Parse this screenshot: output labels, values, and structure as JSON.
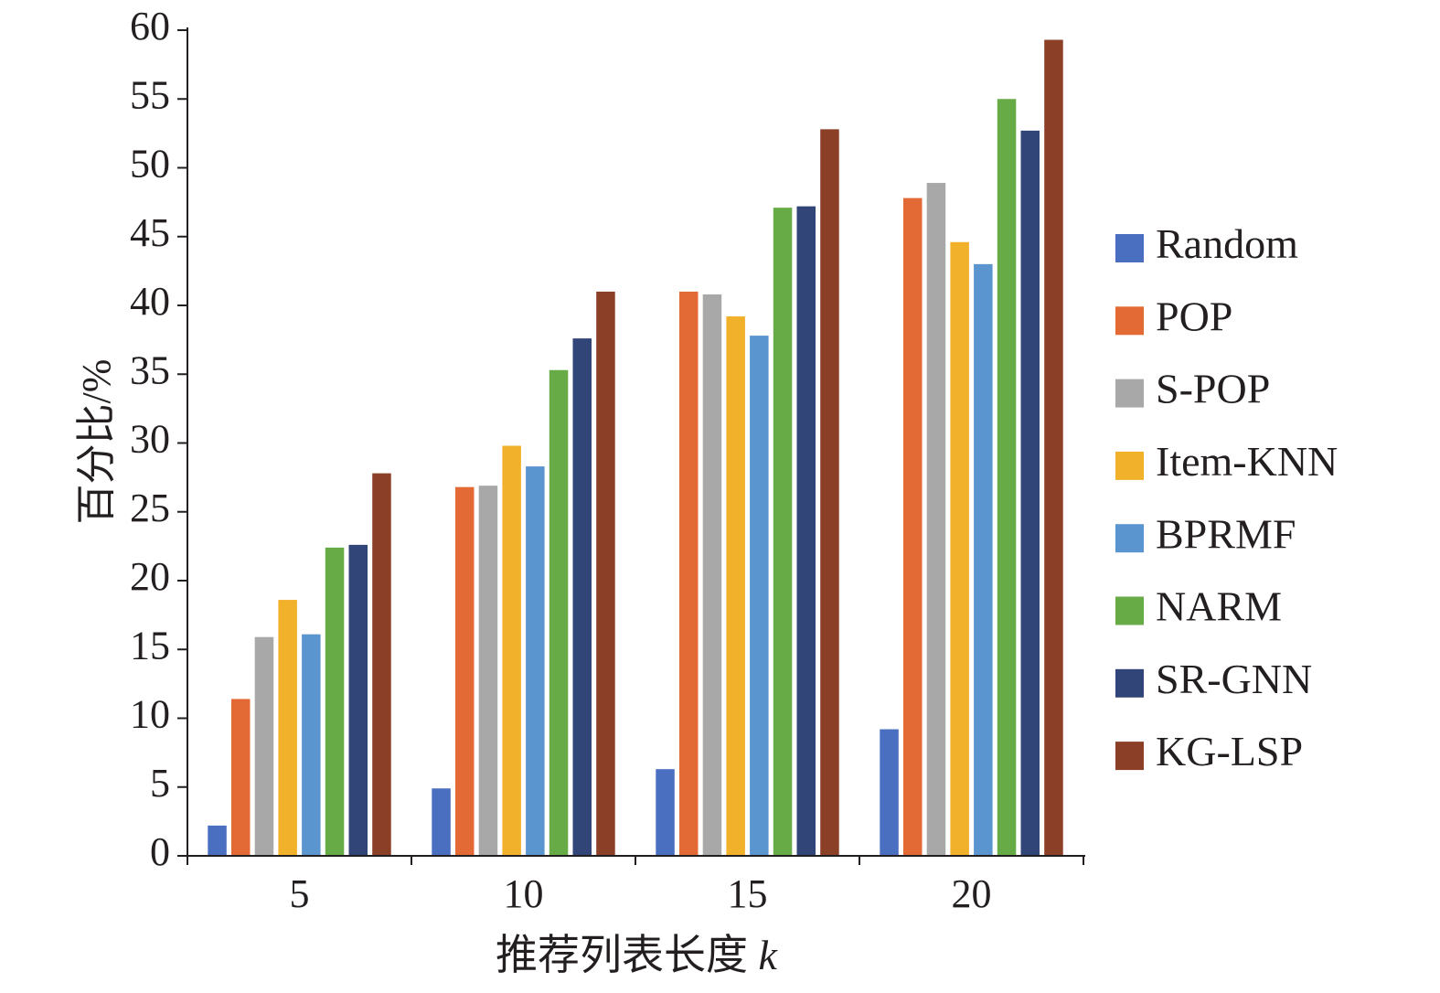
{
  "chart_data": {
    "type": "bar",
    "title": "",
    "xlabel_text": "推荐列表长度",
    "xlabel_var": "k",
    "ylabel": "百分比/%",
    "categories": [
      "5",
      "10",
      "15",
      "20"
    ],
    "ylim": [
      0,
      60
    ],
    "yticks": [
      0,
      5,
      10,
      15,
      20,
      25,
      30,
      35,
      40,
      45,
      50,
      55,
      60
    ],
    "grid": false,
    "legend_position": "right",
    "series": [
      {
        "name": "Random",
        "color": "#4a6fc0",
        "values": [
          2.2,
          4.9,
          6.3,
          9.2
        ]
      },
      {
        "name": "POP",
        "color": "#e46a35",
        "values": [
          11.4,
          26.8,
          41.0,
          47.8
        ]
      },
      {
        "name": "S-POP",
        "color": "#a8a8a8",
        "values": [
          15.9,
          26.9,
          40.8,
          48.9
        ]
      },
      {
        "name": "Item-KNN",
        "color": "#f2b12a",
        "values": [
          18.6,
          29.8,
          39.2,
          44.6
        ]
      },
      {
        "name": "BPRMF",
        "color": "#5b95cf",
        "values": [
          16.1,
          28.3,
          37.8,
          43.0
        ]
      },
      {
        "name": "NARM",
        "color": "#67ab47",
        "values": [
          22.4,
          35.3,
          47.1,
          55.0
        ]
      },
      {
        "name": "SR-GNN",
        "color": "#324578",
        "values": [
          22.6,
          37.6,
          47.2,
          52.7
        ]
      },
      {
        "name": "KG-LSP",
        "color": "#8a3f26",
        "values": [
          27.8,
          41.0,
          52.8,
          59.3
        ]
      }
    ]
  }
}
